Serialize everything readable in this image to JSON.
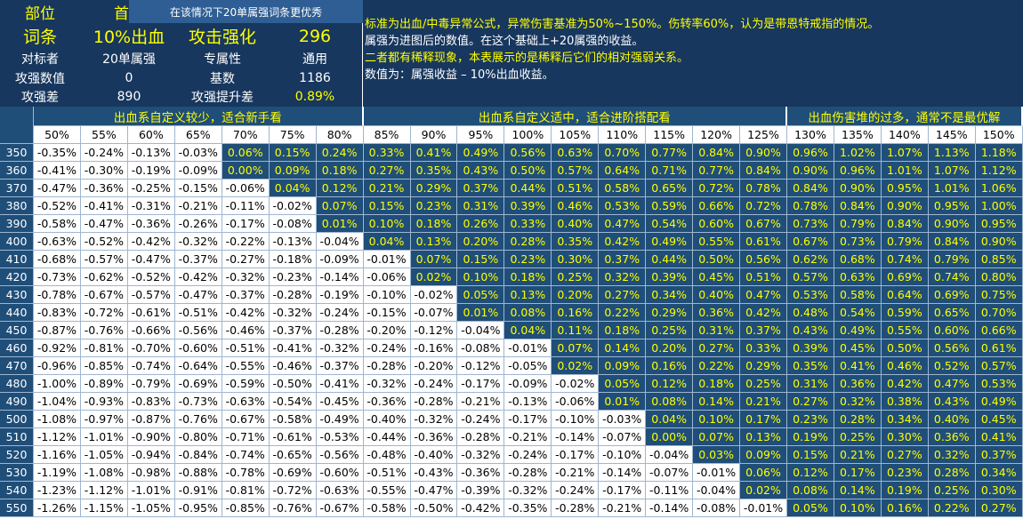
{
  "info": [
    [
      "部位",
      "首饰"
    ],
    [
      "词条",
      "10%出血",
      "攻击强化",
      "296"
    ],
    [
      "对标者",
      "20单属强",
      "专属性",
      "通用"
    ],
    [
      "攻强数值",
      "0",
      "基数",
      "1186"
    ],
    [
      "攻强差",
      "890",
      "攻强提升差",
      "0.89%"
    ]
  ],
  "note": "在该情况下20单属强词条更优秀",
  "description": [
    "标准为出血/中毒异常公式，异常伤害基准为50%~150%。伤转率60%，认为是带恩特戒指的情况。",
    "属强为进图后的数值。在这个基础上+20属强的收益。",
    "二者都有稀释现象，本表展示的是稀释后它们的相对强弱关系。",
    "数值为：属强收益 – 10%出血收益。"
  ],
  "table": {
    "groups": [
      {
        "title": "出血系自定义较少，适合新手看",
        "columns": [
          "50%",
          "55%",
          "60%",
          "65%",
          "70%",
          "75%",
          "80%"
        ]
      },
      {
        "title": "出血系自定义适中，适合进阶搭配看",
        "columns": [
          "85%",
          "90%",
          "95%",
          "100%",
          "105%",
          "110%",
          "115%",
          "120%",
          "125%"
        ]
      },
      {
        "title": "出血伤害堆的过多，通常不是最优解",
        "columns": [
          "130%",
          "135%",
          "140%",
          "145%",
          "150%"
        ]
      }
    ],
    "rows": [
      {
        "label": "350",
        "cells": [
          "-0.35%",
          "-0.24%",
          "-0.13%",
          "-0.03%",
          "0.06%",
          "0.15%",
          "0.24%",
          "0.33%",
          "0.41%",
          "0.49%",
          "0.56%",
          "0.63%",
          "0.70%",
          "0.77%",
          "0.84%",
          "0.90%",
          "0.96%",
          "1.02%",
          "1.07%",
          "1.13%",
          "1.18%"
        ]
      },
      {
        "label": "360",
        "cells": [
          "-0.41%",
          "-0.30%",
          "-0.19%",
          "-0.09%",
          "0.00%",
          "0.09%",
          "0.18%",
          "0.27%",
          "0.35%",
          "0.43%",
          "0.50%",
          "0.57%",
          "0.64%",
          "0.71%",
          "0.77%",
          "0.84%",
          "0.90%",
          "0.96%",
          "1.01%",
          "1.07%",
          "1.12%"
        ]
      },
      {
        "label": "370",
        "cells": [
          "-0.47%",
          "-0.36%",
          "-0.25%",
          "-0.15%",
          "-0.06%",
          "0.04%",
          "0.12%",
          "0.21%",
          "0.29%",
          "0.37%",
          "0.44%",
          "0.51%",
          "0.58%",
          "0.65%",
          "0.72%",
          "0.78%",
          "0.84%",
          "0.90%",
          "0.95%",
          "1.01%",
          "1.06%"
        ]
      },
      {
        "label": "380",
        "cells": [
          "-0.52%",
          "-0.41%",
          "-0.31%",
          "-0.21%",
          "-0.11%",
          "-0.02%",
          "0.07%",
          "0.15%",
          "0.23%",
          "0.31%",
          "0.39%",
          "0.46%",
          "0.53%",
          "0.59%",
          "0.66%",
          "0.72%",
          "0.78%",
          "0.84%",
          "0.90%",
          "0.95%",
          "1.00%"
        ]
      },
      {
        "label": "390",
        "cells": [
          "-0.58%",
          "-0.47%",
          "-0.36%",
          "-0.26%",
          "-0.17%",
          "-0.08%",
          "0.01%",
          "0.10%",
          "0.18%",
          "0.26%",
          "0.33%",
          "0.40%",
          "0.47%",
          "0.54%",
          "0.60%",
          "0.67%",
          "0.73%",
          "0.79%",
          "0.84%",
          "0.90%",
          "0.95%"
        ]
      },
      {
        "label": "400",
        "cells": [
          "-0.63%",
          "-0.52%",
          "-0.42%",
          "-0.32%",
          "-0.22%",
          "-0.13%",
          "-0.04%",
          "0.04%",
          "0.13%",
          "0.20%",
          "0.28%",
          "0.35%",
          "0.42%",
          "0.49%",
          "0.55%",
          "0.61%",
          "0.67%",
          "0.73%",
          "0.79%",
          "0.84%",
          "0.90%"
        ]
      },
      {
        "label": "410",
        "cells": [
          "-0.68%",
          "-0.57%",
          "-0.47%",
          "-0.37%",
          "-0.27%",
          "-0.18%",
          "-0.09%",
          "-0.01%",
          "0.07%",
          "0.15%",
          "0.23%",
          "0.30%",
          "0.37%",
          "0.44%",
          "0.50%",
          "0.56%",
          "0.62%",
          "0.68%",
          "0.74%",
          "0.79%",
          "0.85%"
        ]
      },
      {
        "label": "420",
        "cells": [
          "-0.73%",
          "-0.62%",
          "-0.52%",
          "-0.42%",
          "-0.32%",
          "-0.23%",
          "-0.14%",
          "-0.06%",
          "0.02%",
          "0.10%",
          "0.18%",
          "0.25%",
          "0.32%",
          "0.39%",
          "0.45%",
          "0.51%",
          "0.57%",
          "0.63%",
          "0.69%",
          "0.74%",
          "0.80%"
        ]
      },
      {
        "label": "430",
        "cells": [
          "-0.78%",
          "-0.67%",
          "-0.57%",
          "-0.47%",
          "-0.37%",
          "-0.28%",
          "-0.19%",
          "-0.10%",
          "-0.02%",
          "0.05%",
          "0.13%",
          "0.20%",
          "0.27%",
          "0.34%",
          "0.40%",
          "0.47%",
          "0.53%",
          "0.58%",
          "0.64%",
          "0.69%",
          "0.75%"
        ]
      },
      {
        "label": "440",
        "cells": [
          "-0.83%",
          "-0.72%",
          "-0.61%",
          "-0.51%",
          "-0.42%",
          "-0.32%",
          "-0.24%",
          "-0.15%",
          "-0.07%",
          "0.01%",
          "0.08%",
          "0.16%",
          "0.22%",
          "0.29%",
          "0.36%",
          "0.42%",
          "0.48%",
          "0.54%",
          "0.59%",
          "0.65%",
          "0.70%"
        ]
      },
      {
        "label": "450",
        "cells": [
          "-0.87%",
          "-0.76%",
          "-0.66%",
          "-0.56%",
          "-0.46%",
          "-0.37%",
          "-0.28%",
          "-0.20%",
          "-0.12%",
          "-0.04%",
          "0.04%",
          "0.11%",
          "0.18%",
          "0.25%",
          "0.31%",
          "0.37%",
          "0.43%",
          "0.49%",
          "0.55%",
          "0.60%",
          "0.66%"
        ]
      },
      {
        "label": "460",
        "cells": [
          "-0.92%",
          "-0.81%",
          "-0.70%",
          "-0.60%",
          "-0.51%",
          "-0.41%",
          "-0.32%",
          "-0.24%",
          "-0.16%",
          "-0.08%",
          "-0.01%",
          "0.07%",
          "0.14%",
          "0.20%",
          "0.27%",
          "0.33%",
          "0.39%",
          "0.45%",
          "0.50%",
          "0.56%",
          "0.61%"
        ]
      },
      {
        "label": "470",
        "cells": [
          "-0.96%",
          "-0.85%",
          "-0.74%",
          "-0.64%",
          "-0.55%",
          "-0.46%",
          "-0.37%",
          "-0.28%",
          "-0.20%",
          "-0.12%",
          "-0.05%",
          "0.02%",
          "0.09%",
          "0.16%",
          "0.22%",
          "0.29%",
          "0.35%",
          "0.41%",
          "0.46%",
          "0.52%",
          "0.57%"
        ]
      },
      {
        "label": "480",
        "cells": [
          "-1.00%",
          "-0.89%",
          "-0.79%",
          "-0.69%",
          "-0.59%",
          "-0.50%",
          "-0.41%",
          "-0.32%",
          "-0.24%",
          "-0.17%",
          "-0.09%",
          "-0.02%",
          "0.05%",
          "0.12%",
          "0.18%",
          "0.25%",
          "0.31%",
          "0.36%",
          "0.42%",
          "0.47%",
          "0.53%"
        ]
      },
      {
        "label": "490",
        "cells": [
          "-1.04%",
          "-0.93%",
          "-0.83%",
          "-0.73%",
          "-0.63%",
          "-0.54%",
          "-0.45%",
          "-0.36%",
          "-0.28%",
          "-0.21%",
          "-0.13%",
          "-0.06%",
          "0.01%",
          "0.08%",
          "0.14%",
          "0.21%",
          "0.27%",
          "0.32%",
          "0.38%",
          "0.43%",
          "0.49%"
        ]
      },
      {
        "label": "500",
        "cells": [
          "-1.08%",
          "-0.97%",
          "-0.87%",
          "-0.76%",
          "-0.67%",
          "-0.58%",
          "-0.49%",
          "-0.40%",
          "-0.32%",
          "-0.24%",
          "-0.17%",
          "-0.10%",
          "-0.03%",
          "0.04%",
          "0.10%",
          "0.17%",
          "0.23%",
          "0.28%",
          "0.34%",
          "0.40%",
          "0.45%"
        ]
      },
      {
        "label": "510",
        "cells": [
          "-1.12%",
          "-1.01%",
          "-0.90%",
          "-0.80%",
          "-0.71%",
          "-0.61%",
          "-0.53%",
          "-0.44%",
          "-0.36%",
          "-0.28%",
          "-0.21%",
          "-0.14%",
          "-0.07%",
          "0.00%",
          "0.07%",
          "0.13%",
          "0.19%",
          "0.25%",
          "0.30%",
          "0.36%",
          "0.41%"
        ]
      },
      {
        "label": "520",
        "cells": [
          "-1.16%",
          "-1.05%",
          "-0.94%",
          "-0.84%",
          "-0.74%",
          "-0.65%",
          "-0.56%",
          "-0.48%",
          "-0.40%",
          "-0.32%",
          "-0.24%",
          "-0.17%",
          "-0.10%",
          "-0.04%",
          "0.03%",
          "0.09%",
          "0.15%",
          "0.21%",
          "0.27%",
          "0.32%",
          "0.37%"
        ]
      },
      {
        "label": "530",
        "cells": [
          "-1.19%",
          "-1.08%",
          "-0.98%",
          "-0.88%",
          "-0.78%",
          "-0.69%",
          "-0.60%",
          "-0.51%",
          "-0.43%",
          "-0.36%",
          "-0.28%",
          "-0.21%",
          "-0.14%",
          "-0.07%",
          "-0.01%",
          "0.06%",
          "0.12%",
          "0.17%",
          "0.23%",
          "0.28%",
          "0.34%"
        ]
      },
      {
        "label": "540",
        "cells": [
          "-1.23%",
          "-1.12%",
          "-1.01%",
          "-0.91%",
          "-0.81%",
          "-0.72%",
          "-0.63%",
          "-0.55%",
          "-0.47%",
          "-0.39%",
          "-0.32%",
          "-0.24%",
          "-0.17%",
          "-0.11%",
          "-0.04%",
          "0.02%",
          "0.08%",
          "0.14%",
          "0.19%",
          "0.25%",
          "0.30%"
        ]
      },
      {
        "label": "550",
        "cells": [
          "-1.26%",
          "-1.15%",
          "-1.05%",
          "-0.95%",
          "-0.85%",
          "-0.76%",
          "-0.67%",
          "-0.58%",
          "-0.50%",
          "-0.42%",
          "-0.35%",
          "-0.28%",
          "-0.21%",
          "-0.14%",
          "-0.08%",
          "-0.01%",
          "0.05%",
          "0.10%",
          "0.16%",
          "0.22%",
          "0.27%"
        ]
      }
    ]
  }
}
